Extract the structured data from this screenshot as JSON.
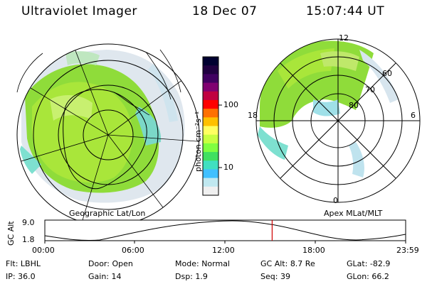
{
  "header": {
    "title": "Ultraviolet Imager",
    "date": "18 Dec 07",
    "time": "15:07:44 UT"
  },
  "left_map": {
    "label": "Geographic Lat/Lon"
  },
  "right_map": {
    "label": "Apex MLat/MLT",
    "mlt_labels": {
      "top": "12",
      "right": "6",
      "bottom": "0",
      "left": "18"
    },
    "lat_labels": [
      "60",
      "70",
      "80"
    ]
  },
  "colorbar": {
    "unit": "photon cm⁻²s⁻¹",
    "ticks": [
      "100",
      "10"
    ],
    "colors": [
      "#000030",
      "#200040",
      "#400060",
      "#800070",
      "#c00040",
      "#ff0000",
      "#ff7000",
      "#ffc000",
      "#ffff60",
      "#c8ff40",
      "#80ff40",
      "#40e060",
      "#40e0c0",
      "#40c0ff",
      "#c0e8f0",
      "#f0f0f0"
    ]
  },
  "altitude_plot": {
    "ylabel": "GC Alt",
    "yticks": [
      "9.0",
      "1.8"
    ],
    "xticks": [
      "00:00",
      "06:00",
      "12:00",
      "18:00",
      "23:59"
    ],
    "current_time_fraction": 0.63
  },
  "footer": {
    "row1": [
      {
        "label": "Flt:",
        "value": "LBHL"
      },
      {
        "label": "Door:",
        "value": "Open"
      },
      {
        "label": "Mode:",
        "value": "Normal"
      },
      {
        "label": "GC Alt:",
        "value": "8.7 Re"
      },
      {
        "label": "GLat:",
        "value": "-82.9"
      }
    ],
    "row2": [
      {
        "label": "IP:",
        "value": "36.0"
      },
      {
        "label": "Gain:",
        "value": "14"
      },
      {
        "label": "Dsp:",
        "value": "1.9"
      },
      {
        "label": "Seq:",
        "value": "39"
      },
      {
        "label": "GLon:",
        "value": "66.2"
      }
    ]
  }
}
